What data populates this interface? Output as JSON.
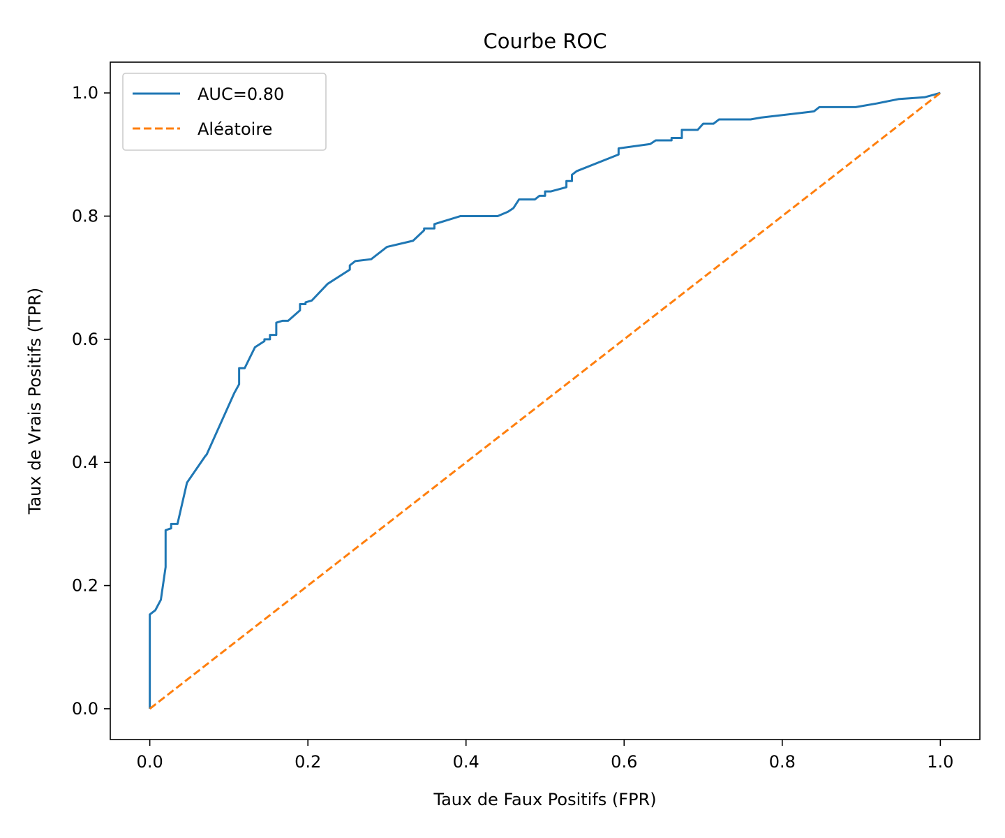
{
  "chart_data": {
    "type": "line",
    "title": "Courbe ROC",
    "xlabel": "Taux de Faux Positifs (FPR)",
    "ylabel": "Taux de Vrais Positifs (TPR)",
    "xlim": [
      -0.05,
      1.05
    ],
    "ylim": [
      -0.05,
      1.05
    ],
    "xticks": [
      0.0,
      0.2,
      0.4,
      0.6,
      0.8,
      1.0
    ],
    "xtick_labels": [
      "0.0",
      "0.2",
      "0.4",
      "0.6",
      "0.8",
      "1.0"
    ],
    "yticks": [
      0.0,
      0.2,
      0.4,
      0.6,
      0.8,
      1.0
    ],
    "ytick_labels": [
      "0.0",
      "0.2",
      "0.4",
      "0.6",
      "0.8",
      "1.0"
    ],
    "grid": false,
    "legend_position": "top-left",
    "series": [
      {
        "name": "AUC=0.80",
        "style": "solid",
        "color": "#1f77b4",
        "x": [
          0.0,
          0.0,
          0.007,
          0.014,
          0.02,
          0.02,
          0.027,
          0.027,
          0.035,
          0.047,
          0.07,
          0.072,
          0.107,
          0.113,
          0.113,
          0.12,
          0.133,
          0.145,
          0.145,
          0.152,
          0.152,
          0.16,
          0.16,
          0.168,
          0.175,
          0.19,
          0.19,
          0.197,
          0.197,
          0.205,
          0.225,
          0.253,
          0.253,
          0.26,
          0.28,
          0.3,
          0.333,
          0.347,
          0.347,
          0.36,
          0.36,
          0.393,
          0.44,
          0.453,
          0.46,
          0.467,
          0.487,
          0.493,
          0.5,
          0.5,
          0.507,
          0.527,
          0.527,
          0.534,
          0.534,
          0.54,
          0.593,
          0.593,
          0.633,
          0.64,
          0.66,
          0.66,
          0.673,
          0.673,
          0.693,
          0.7,
          0.713,
          0.72,
          0.76,
          0.773,
          0.84,
          0.847,
          0.893,
          0.92,
          0.947,
          0.98,
          1.0
        ],
        "y": [
          0.0,
          0.153,
          0.16,
          0.177,
          0.23,
          0.29,
          0.293,
          0.3,
          0.3,
          0.367,
          0.41,
          0.413,
          0.513,
          0.527,
          0.553,
          0.553,
          0.587,
          0.597,
          0.6,
          0.6,
          0.607,
          0.607,
          0.627,
          0.63,
          0.63,
          0.647,
          0.657,
          0.657,
          0.66,
          0.663,
          0.69,
          0.713,
          0.72,
          0.727,
          0.73,
          0.75,
          0.76,
          0.777,
          0.78,
          0.78,
          0.787,
          0.8,
          0.8,
          0.807,
          0.813,
          0.827,
          0.827,
          0.833,
          0.833,
          0.84,
          0.84,
          0.847,
          0.857,
          0.857,
          0.867,
          0.873,
          0.9,
          0.91,
          0.917,
          0.923,
          0.923,
          0.927,
          0.927,
          0.94,
          0.94,
          0.95,
          0.95,
          0.957,
          0.957,
          0.96,
          0.97,
          0.977,
          0.977,
          0.983,
          0.99,
          0.993,
          1.0
        ]
      },
      {
        "name": "Aléatoire",
        "style": "dashed",
        "color": "#ff7f0e",
        "x": [
          0.0,
          1.0
        ],
        "y": [
          0.0,
          1.0
        ]
      }
    ]
  }
}
